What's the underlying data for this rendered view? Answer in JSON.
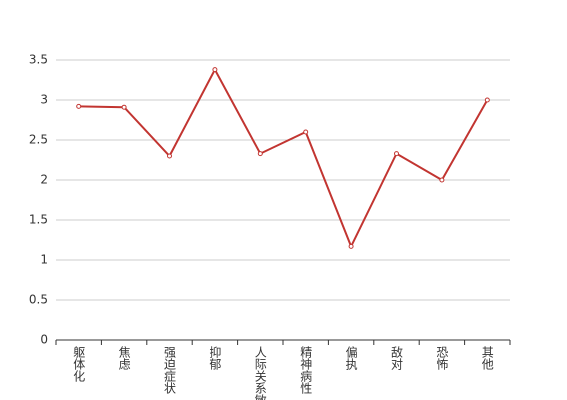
{
  "chart_data": {
    "type": "line",
    "categories": [
      "躯体化",
      "焦虑",
      "强迫症状",
      "抑郁",
      "人际关系敏感",
      "精神病性",
      "偏执",
      "敌对",
      "恐怖",
      "其他"
    ],
    "values": [
      2.92,
      2.91,
      2.3,
      3.38,
      2.33,
      2.6,
      1.17,
      2.33,
      2,
      3
    ],
    "color": "#c23531",
    "ylim": [
      0,
      3.5
    ],
    "yticks": [
      0,
      0.5,
      1,
      1.5,
      2,
      2.5,
      3,
      3.5
    ],
    "grid": true
  }
}
